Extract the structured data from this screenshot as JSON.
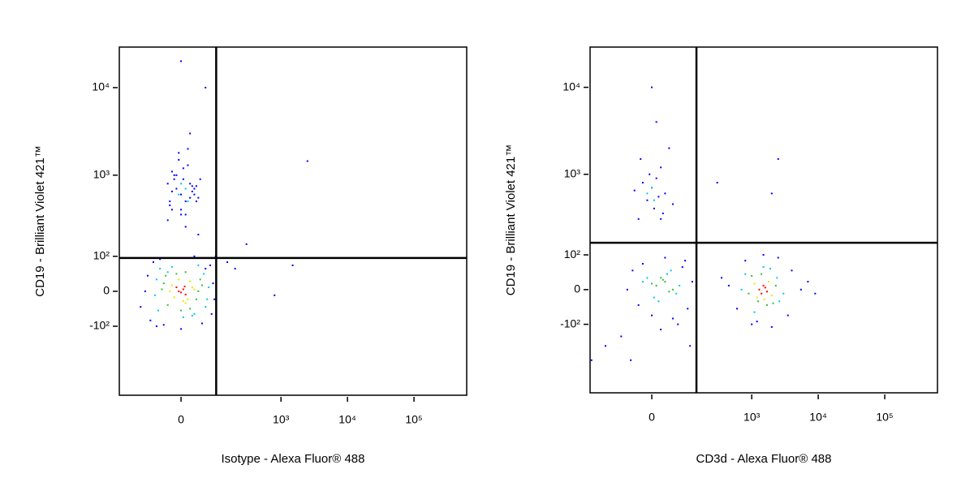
{
  "chart_data": [
    {
      "type": "scatter",
      "xlabel": "Isotype - Alexa Fluor® 488",
      "ylabel": "CD19 - Brilliant Violet 421™",
      "xscale": {
        "type": "asinh",
        "cofactor": 63
      },
      "yscale": {
        "type": "asinh",
        "cofactor": 95
      },
      "xlim": [
        -263,
        620000
      ],
      "ylim": [
        -725,
        29000
      ],
      "xticks": [
        0,
        {
          "value": 1000,
          "label": "10³"
        },
        {
          "value": 10000,
          "label": "10⁴"
        },
        {
          "value": 100000,
          "label": "10⁵"
        }
      ],
      "yticks": [
        {
          "value": -100,
          "label": "-10²"
        },
        0,
        {
          "value": 100,
          "label": "10²"
        },
        {
          "value": 1000,
          "label": "10³"
        },
        {
          "value": 10000,
          "label": "10⁴"
        }
      ],
      "gates": {
        "x": 97,
        "y": 94
      },
      "series": [
        {
          "color": "#0000ff",
          "x": [
            -90,
            -80,
            80,
            75,
            -40,
            30,
            90,
            -100,
            0,
            50,
            -70,
            60,
            85,
            -50,
            -20,
            0,
            20,
            -10,
            10,
            30,
            -30,
            5,
            -15,
            25,
            40,
            -5,
            15,
            0,
            35,
            -25,
            10,
            20,
            -20,
            0,
            300,
            2500,
            800,
            60,
            40,
            150,
            200,
            1500,
            -120,
            -60,
            95,
            -25,
            -10,
            5,
            15,
            30,
            -30,
            0,
            20,
            -15,
            10,
            25,
            -5,
            35,
            -20,
            45
          ],
          "y": [
            40,
            -80,
            -60,
            70,
            -95,
            100,
            -20,
            0,
            -110,
            -90,
            80,
            60,
            20,
            90,
            400,
            600,
            800,
            1000,
            500,
            700,
            300,
            1200,
            900,
            650,
            550,
            1500,
            2000,
            350,
            750,
            450,
            250,
            3000,
            1100,
            20000,
            150,
            1450,
            -10,
            10000,
            200,
            80,
            60,
            70,
            -40,
            -100,
            100,
            500,
            700,
            900,
            1300,
            600,
            800,
            400,
            550,
            1000,
            350,
            750,
            1800,
            500,
            650,
            900
          ]
        },
        {
          "color": "#00c8e8",
          "x": [
            -60,
            -55,
            60,
            55,
            -20,
            25,
            70,
            -65,
            5,
            40,
            -50,
            30,
            65,
            -30,
            -5,
            10,
            0,
            15
          ],
          "y": [
            30,
            -50,
            -40,
            45,
            65,
            -65,
            10,
            -10,
            -70,
            70,
            60,
            -60,
            -20,
            50,
            600,
            700,
            800,
            500
          ]
        },
        {
          "color": "#30c030",
          "x": [
            -40,
            -30,
            35,
            45,
            -10,
            20,
            40,
            -45,
            0,
            10,
            50,
            -35
          ],
          "y": [
            20,
            -35,
            -20,
            30,
            45,
            -45,
            0,
            5,
            -50,
            50,
            15,
            40
          ]
        },
        {
          "color": "#e8e800",
          "x": [
            -20,
            15,
            25,
            -15,
            20,
            -25,
            5,
            30,
            -5,
            10
          ],
          "y": [
            15,
            -20,
            10,
            -15,
            25,
            0,
            -25,
            5,
            30,
            -30
          ]
        },
        {
          "color": "#ff0000",
          "x": [
            -5,
            5,
            10,
            -10,
            0,
            8
          ],
          "y": [
            0,
            5,
            -8,
            10,
            -3,
            12
          ]
        }
      ]
    },
    {
      "type": "scatter",
      "xlabel": "CD3d - Alexa Fluor® 488",
      "ylabel": "CD19 - Brilliant Violet 421™",
      "xscale": {
        "type": "asinh",
        "cofactor": 63
      },
      "yscale": {
        "type": "asinh",
        "cofactor": 95
      },
      "xlim": [
        -263,
        620000
      ],
      "ylim": [
        -725,
        29000
      ],
      "xticks": [
        0,
        {
          "value": 1000,
          "label": "10³"
        },
        {
          "value": 10000,
          "label": "10⁴"
        },
        {
          "value": 100000,
          "label": "10⁵"
        }
      ],
      "yticks": [
        {
          "value": -100,
          "label": "-10²"
        },
        0,
        {
          "value": 100,
          "label": "10²"
        },
        {
          "value": 1000,
          "label": "10³"
        },
        {
          "value": 10000,
          "label": "10⁴"
        }
      ],
      "gates": {
        "x": 141,
        "y": 150
      },
      "series": [
        {
          "color": "#0000ff",
          "x": [
            -30,
            -45,
            80,
            100,
            120,
            -60,
            0,
            50,
            90,
            -20,
            65,
            30,
            140,
            -80,
            -50,
            110,
            20,
            450,
            5500,
            600,
            4000,
            9000,
            1500,
            1200,
            2000,
            800,
            3500,
            350,
            7000,
            1000,
            2500,
            -30,
            -10,
            0,
            10,
            20,
            30,
            -20,
            5,
            15,
            -5,
            25,
            40,
            -40,
            50,
            -25,
            0,
            10,
            20,
            2500,
            2000,
            300,
            -250,
            -150
          ],
          "y": [
            -40,
            50,
            60,
            -50,
            20,
            0,
            -70,
            -80,
            80,
            70,
            -100,
            90,
            10,
            -150,
            -300,
            -200,
            -120,
            10,
            0,
            -50,
            50,
            -10,
            100,
            -90,
            -110,
            80,
            -70,
            30,
            20,
            -100,
            90,
            300,
            500,
            700,
            900,
            1200,
            600,
            800,
            400,
            550,
            1000,
            350,
            2000,
            650,
            450,
            1500,
            10000,
            4000,
            300,
            1500,
            600,
            800,
            -300,
            -200
          ]
        },
        {
          "color": "#00c8e8",
          "x": [
            -10,
            60,
            35,
            5,
            45,
            70,
            15,
            -20,
            700,
            3000,
            800,
            2600,
            1500,
            1100,
            1900,
            2400,
            -10,
            0,
            5
          ],
          "y": [
            30,
            -10,
            40,
            -20,
            50,
            10,
            -30,
            20,
            0,
            -10,
            40,
            -30,
            60,
            -60,
            55,
            30,
            600,
            700,
            500
          ]
        },
        {
          "color": "#30c030",
          "x": [
            10,
            30,
            50,
            20,
            40,
            0,
            25,
            900,
            2300,
            1000,
            2100,
            1400,
            1700,
            1250
          ],
          "y": [
            10,
            20,
            0,
            30,
            -5,
            15,
            25,
            -10,
            10,
            35,
            -35,
            40,
            -40,
            -30
          ]
        },
        {
          "color": "#e8e800",
          "x": [
            1100,
            2000,
            1800,
            1200,
            1550
          ],
          "y": [
            15,
            -15,
            20,
            -20,
            -25
          ]
        },
        {
          "color": "#ff0000",
          "x": [
            1300,
            1500,
            1700,
            1400,
            1600
          ],
          "y": [
            0,
            10,
            -5,
            -10,
            5
          ]
        }
      ]
    }
  ]
}
